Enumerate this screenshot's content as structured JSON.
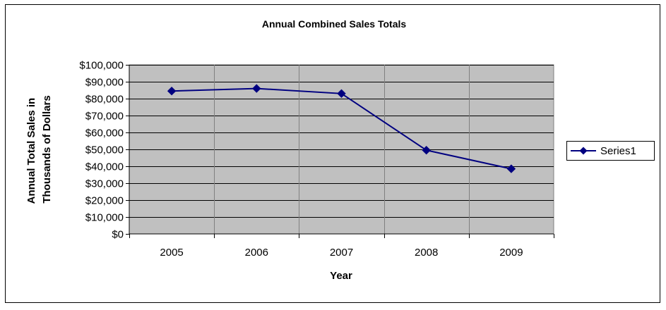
{
  "chart_data": {
    "type": "line",
    "title": "Annual Combined Sales Totals",
    "xlabel": "Year",
    "ylabel": [
      "Annual Total Sales in",
      "Thousands of Dollars"
    ],
    "categories": [
      "2005",
      "2006",
      "2007",
      "2008",
      "2009"
    ],
    "series": [
      {
        "name": "Series1",
        "values": [
          84500,
          86000,
          83000,
          49500,
          38500
        ],
        "color": "#000080"
      }
    ],
    "ylim": [
      0,
      100000
    ],
    "ytick_step": 10000,
    "ytick_labels": [
      "$0",
      "$10,000",
      "$20,000",
      "$30,000",
      "$40,000",
      "$50,000",
      "$60,000",
      "$70,000",
      "$80,000",
      "$90,000",
      "$100,000"
    ],
    "grid": true,
    "plot_background": "#c0c0c0",
    "legend_position": "right",
    "marker": "diamond"
  }
}
